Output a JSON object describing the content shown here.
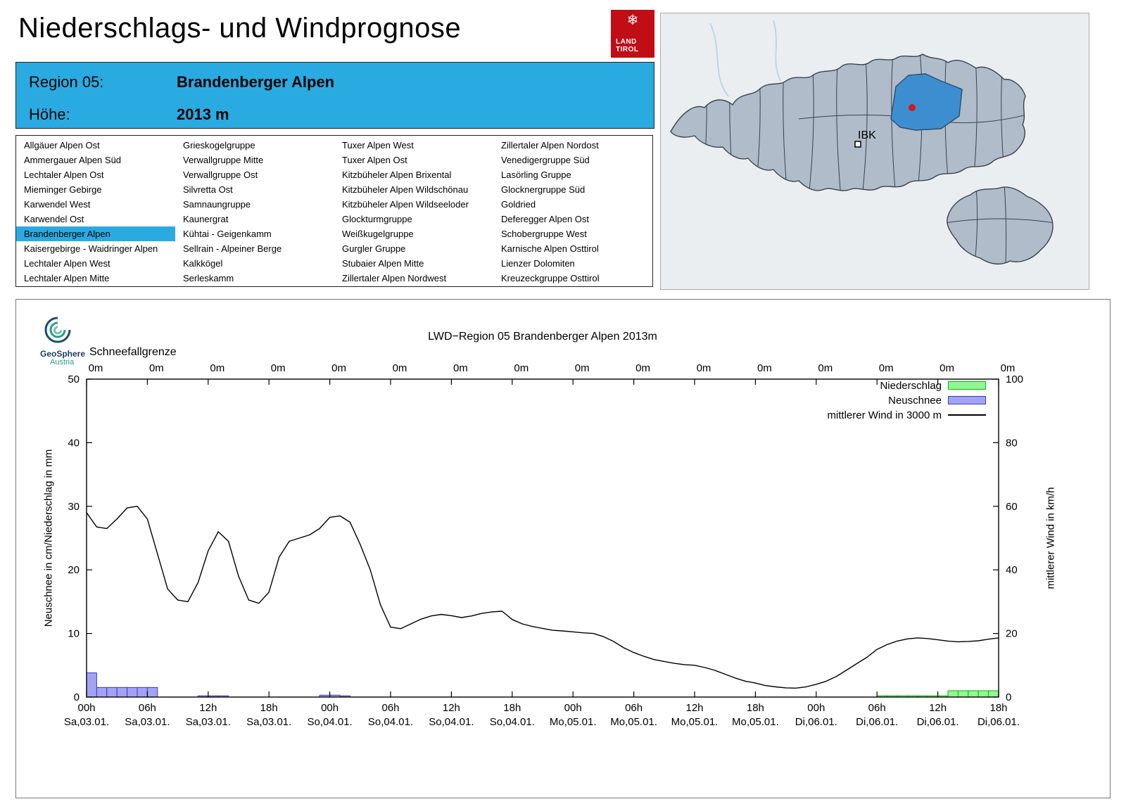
{
  "colors": {
    "accent": "#29abe2",
    "map_fill": "#b0bcc9",
    "map_stroke": "#39424e",
    "map_sel": "#3d8ed0",
    "marker_red": "#cf1b1b"
  },
  "header": {
    "title": "Niederschlags- und Windprognose",
    "logo": {
      "snowflake": "❄",
      "line1": "LAND",
      "line2": "TIROL"
    }
  },
  "map": {
    "city_label": "IBK"
  },
  "region_info": {
    "region_label": "Region 05:",
    "region_name": "Brandenberger Alpen",
    "elevation_label": "Höhe:",
    "elevation_value": "2013 m"
  },
  "region_list": {
    "selected": "Brandenberger Alpen",
    "columns": [
      [
        "Allgäuer Alpen Ost",
        "Ammergauer Alpen Süd",
        "Lechtaler Alpen Ost",
        "Mieminger Gebirge",
        "Karwendel West",
        "Karwendel Ost",
        "Brandenberger Alpen",
        "Kaisergebirge - Waidringer Alpen",
        "Lechtaler Alpen West",
        "Lechtaler Alpen Mitte"
      ],
      [
        "Grieskogelgruppe",
        "Verwallgruppe Mitte",
        "Verwallgruppe Ost",
        "Silvretta Ost",
        "Samnaungruppe",
        "Kaunergrat",
        "Kühtai - Geigenkamm",
        "Sellrain - Alpeiner Berge",
        "Kalkkögel",
        "Serleskamm"
      ],
      [
        "Tuxer Alpen West",
        "Tuxer Alpen Ost",
        "Kitzbüheler Alpen Brixental",
        "Kitzbüheler Alpen Wildschönau",
        "Kitzbüheler Alpen Wildseeloder",
        "Glockturmgruppe",
        "Weißkugelgruppe",
        "Gurgler Gruppe",
        "Stubaier Alpen Mitte",
        "Zillertaler Alpen Nordwest"
      ],
      [
        "Zillertaler Alpen Nordost",
        "Venedigergruppe Süd",
        "Lasörling Gruppe",
        "Glocknergruppe Süd",
        "Goldried",
        "Deferegger Alpen Ost",
        "Schobergruppe West",
        "Karnische Alpen Osttirol",
        "Lienzer Dolomiten",
        "Kreuzeckgruppe Osttirol"
      ]
    ]
  },
  "geosphere": {
    "line1": "GeoSphere",
    "line2": "Austria"
  },
  "chart_data": {
    "type": "line+bar",
    "title": "LWD−Region 05 Brandenberger Alpen 2013m",
    "snowline_label": "Schneefallgrenze",
    "snowline_values": [
      "0m",
      "0m",
      "0m",
      "0m",
      "0m",
      "0m",
      "0m",
      "0m",
      "0m",
      "0m",
      "0m",
      "0m",
      "0m",
      "0m",
      "0m",
      "0m"
    ],
    "ylabel_left": "Neuschnee in cm/Niederschlag in mm",
    "ylabel_right": "mittlerer Wind in km/h",
    "ylim_left": [
      0,
      50
    ],
    "ylim_right": [
      0,
      100
    ],
    "yticks_left": [
      0,
      10,
      20,
      30,
      40,
      50
    ],
    "yticks_right": [
      0,
      20,
      40,
      60,
      80,
      100
    ],
    "x_hours_total": 90,
    "xticks": [
      {
        "time": "00h",
        "date": "Sa,03.01."
      },
      {
        "time": "06h",
        "date": "Sa,03.01."
      },
      {
        "time": "12h",
        "date": "Sa,03.01."
      },
      {
        "time": "18h",
        "date": "Sa,03.01."
      },
      {
        "time": "00h",
        "date": "So,04.01."
      },
      {
        "time": "06h",
        "date": "So,04.01."
      },
      {
        "time": "12h",
        "date": "So,04.01."
      },
      {
        "time": "18h",
        "date": "So,04.01."
      },
      {
        "time": "00h",
        "date": "Mo,05.01."
      },
      {
        "time": "06h",
        "date": "Mo,05.01."
      },
      {
        "time": "12h",
        "date": "Mo,05.01."
      },
      {
        "time": "18h",
        "date": "Mo,05.01."
      },
      {
        "time": "00h",
        "date": "Di,06.01."
      },
      {
        "time": "06h",
        "date": "Di,06.01."
      },
      {
        "time": "12h",
        "date": "Di,06.01."
      },
      {
        "time": "18h",
        "date": "Di,06.01."
      }
    ],
    "legend": [
      {
        "label": "Niederschlag",
        "type": "bar",
        "fill": "#90f890",
        "stroke": "#0ab40a"
      },
      {
        "label": "Neuschnee",
        "type": "bar",
        "fill": "#a3a3f5",
        "stroke": "#3a3ac8"
      },
      {
        "label": "mittlerer Wind in 3000 m",
        "type": "line",
        "stroke": "#000000"
      }
    ],
    "wind_kmh": [
      58,
      53.5,
      53,
      56,
      59.5,
      60,
      56,
      45,
      34,
      30.5,
      30,
      36,
      46,
      52,
      49,
      38,
      30.5,
      29.5,
      33,
      44,
      49,
      50,
      51,
      53,
      56.5,
      57,
      55,
      48,
      40,
      29,
      22,
      21.5,
      23,
      24.5,
      25.5,
      26,
      25.6,
      25,
      25.5,
      26.3,
      26.8,
      27,
      24.4,
      23,
      22.2,
      21.6,
      21,
      20.8,
      20.5,
      20.2,
      20,
      19,
      17.5,
      15.5,
      14,
      12.8,
      11.8,
      11.2,
      10.6,
      10.2,
      10,
      9.3,
      8.4,
      7.2,
      6,
      5,
      4.4,
      3.6,
      3.2,
      2.9,
      2.8,
      3.2,
      4,
      5,
      6.5,
      8.5,
      10.5,
      12.5,
      15,
      16.5,
      17.6,
      18.3,
      18.6,
      18.4,
      18,
      17.6,
      17.4,
      17.5,
      17.7,
      18.2,
      18.6
    ],
    "neuschnee_cm_hourly": [
      3.8,
      1.5,
      1.5,
      1.5,
      1.5,
      1.5,
      1.5,
      0,
      0,
      0,
      0,
      0.2,
      0.2,
      0.2,
      0,
      0,
      0,
      0,
      0,
      0,
      0,
      0,
      0,
      0.3,
      0.3,
      0.2,
      0,
      0,
      0,
      0,
      0,
      0,
      0,
      0,
      0,
      0,
      0,
      0,
      0,
      0,
      0,
      0,
      0,
      0,
      0,
      0,
      0,
      0,
      0,
      0,
      0,
      0,
      0,
      0,
      0,
      0,
      0,
      0,
      0,
      0,
      0,
      0,
      0,
      0,
      0,
      0,
      0,
      0,
      0,
      0,
      0,
      0,
      0,
      0,
      0,
      0,
      0,
      0,
      0,
      0,
      0,
      0,
      0,
      0,
      0,
      0,
      0,
      0,
      0,
      0
    ],
    "niederschlag_mm_hourly": [
      0,
      0,
      0,
      0,
      0,
      0,
      0,
      0,
      0,
      0,
      0,
      0,
      0,
      0,
      0,
      0,
      0,
      0,
      0,
      0,
      0,
      0,
      0,
      0,
      0,
      0,
      0,
      0,
      0,
      0,
      0,
      0,
      0,
      0,
      0,
      0,
      0,
      0,
      0,
      0,
      0,
      0,
      0,
      0,
      0,
      0,
      0,
      0,
      0,
      0,
      0,
      0,
      0,
      0,
      0,
      0,
      0,
      0,
      0,
      0,
      0,
      0,
      0,
      0,
      0,
      0,
      0,
      0,
      0,
      0,
      0,
      0,
      0,
      0,
      0,
      0,
      0,
      0,
      0.2,
      0.2,
      0.2,
      0.2,
      0.2,
      0.2,
      0.2,
      1,
      1,
      1,
      1,
      1
    ]
  }
}
